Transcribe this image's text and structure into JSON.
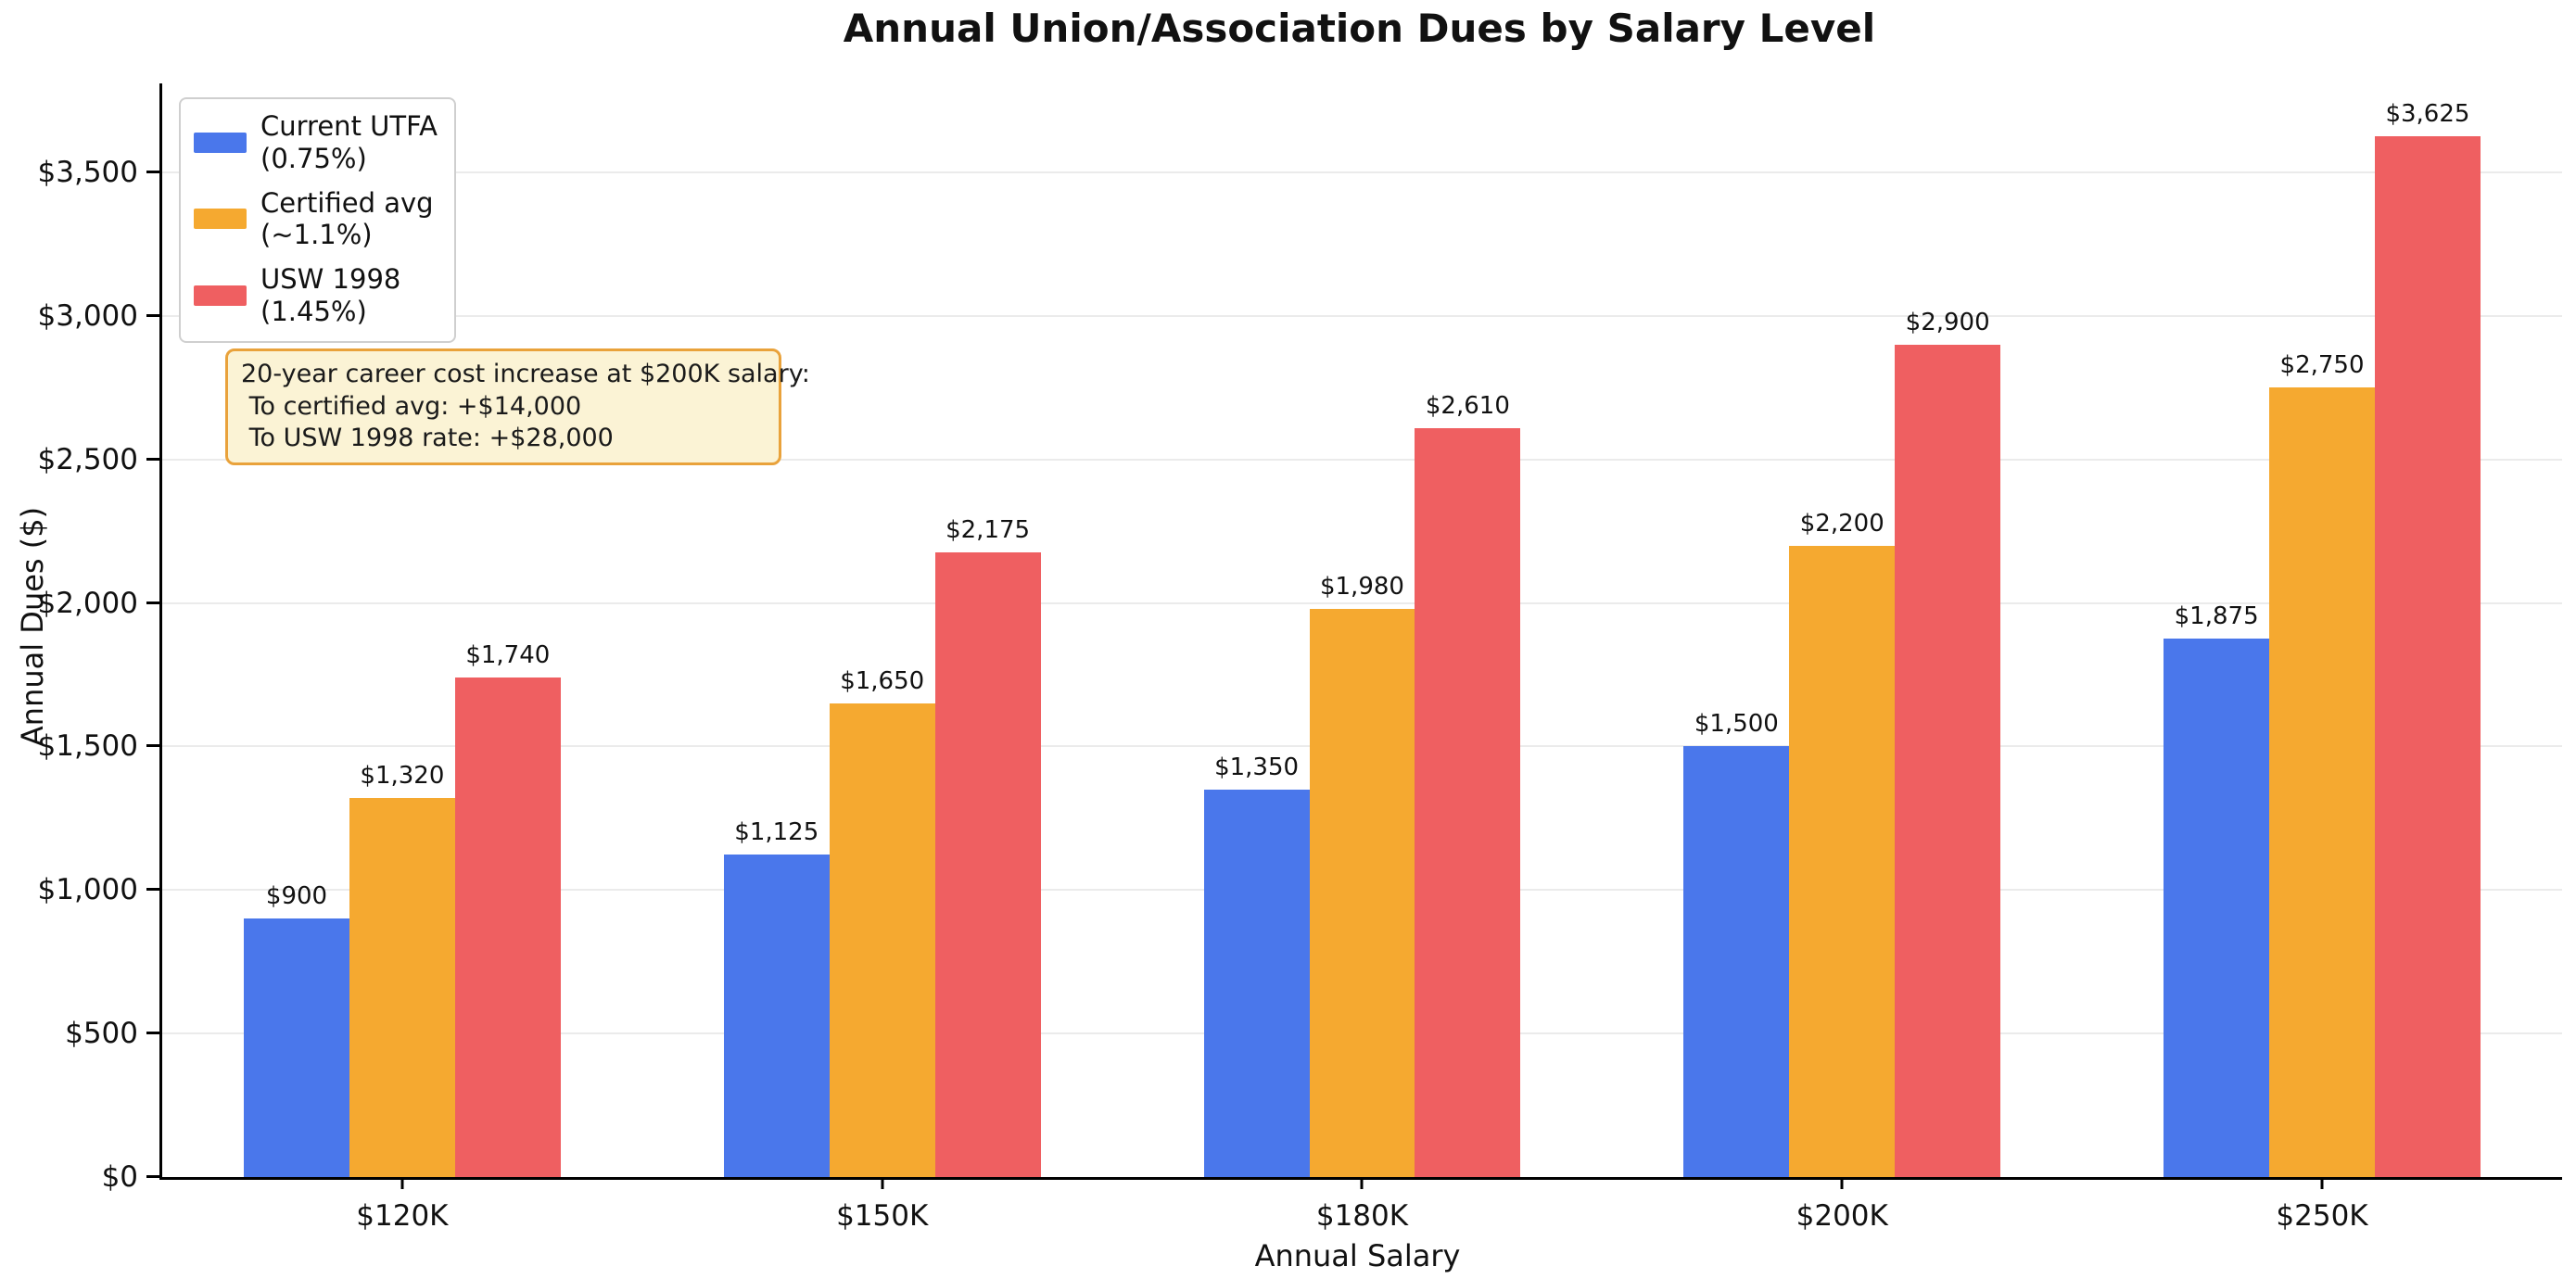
{
  "title": "Annual Union/Association Dues by Salary Level",
  "annotation": {
    "line1": "20-year career cost increase at $200K salary:",
    "line2": " To certified avg: +$14,000",
    "line3": " To USW 1998 rate: +$28,000"
  },
  "colors": {
    "series_blue": "#4A77EB",
    "series_orange": "#F5A930",
    "series_red": "#EF5F61",
    "gridline": "#ebebeb",
    "annotation_bg": "#FBF3D5",
    "annotation_border": "#E9A23B",
    "legend_border": "#cfcfcf",
    "axis": "#000000"
  },
  "chart_data": {
    "type": "bar",
    "title": "Annual Union/Association Dues by Salary Level",
    "xlabel": "Annual Salary",
    "ylabel": "Annual Dues ($)",
    "categories": [
      "$120K",
      "$150K",
      "$180K",
      "$200K",
      "$250K"
    ],
    "series": [
      {
        "name": "Current UTFA (0.75%)",
        "legend_label": "Current UTFA\n(0.75%)",
        "color": "#4A77EB",
        "values": [
          900,
          1125,
          1350,
          1500,
          1875
        ],
        "labels": [
          "$900",
          "$1,125",
          "$1,350",
          "$1,500",
          "$1,875"
        ]
      },
      {
        "name": "Certified avg (~1.1%)",
        "legend_label": "Certified avg\n(~1.1%)",
        "color": "#F5A930",
        "values": [
          1320,
          1650,
          1980,
          2200,
          2750
        ],
        "labels": [
          "$1,320",
          "$1,650",
          "$1,980",
          "$2,200",
          "$2,750"
        ]
      },
      {
        "name": "USW 1998 (1.45%)",
        "legend_label": "USW 1998\n(1.45%)",
        "color": "#EF5F61",
        "values": [
          1740,
          2175,
          2610,
          2900,
          3625
        ],
        "labels": [
          "$1,740",
          "$2,175",
          "$2,610",
          "$2,900",
          "$3,625"
        ]
      }
    ],
    "ylim": [
      0,
      3810
    ],
    "yticks": {
      "values": [
        0,
        500,
        1000,
        1500,
        2000,
        2500,
        3000,
        3500
      ],
      "labels": [
        "$0",
        "$500",
        "$1,000",
        "$1,500",
        "$2,000",
        "$2,500",
        "$3,000",
        "$3,500"
      ]
    },
    "grid": "horizontal",
    "legend_position": "upper-left",
    "annotation_text": "20-year career cost increase at $200K salary:\n To certified avg: +$14,000\n To USW 1998 rate: +$28,000"
  }
}
